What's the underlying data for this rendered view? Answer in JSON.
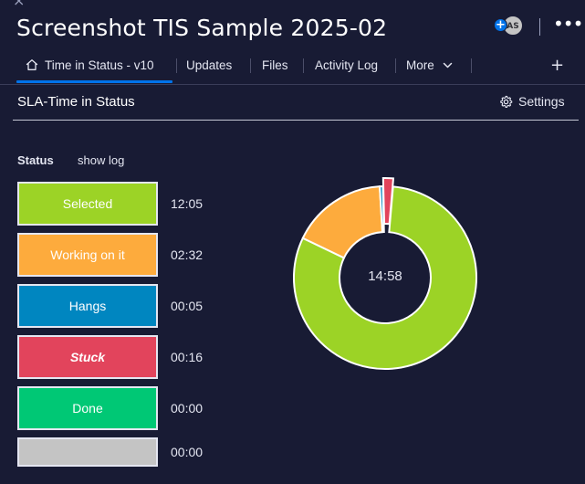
{
  "header": {
    "close_glyph": "×",
    "title": "Screenshot TIS Sample 2025-02",
    "avatar_initials": "AS",
    "avatar_plus": "+",
    "more_glyph": "•••"
  },
  "tabs": [
    {
      "label": "Time in Status - v10",
      "icon": "home-icon",
      "active": true
    },
    {
      "label": "Updates"
    },
    {
      "label": "Files"
    },
    {
      "label": "Activity Log"
    },
    {
      "label": "More",
      "icon": "chevron-down-icon"
    }
  ],
  "add_tab_glyph": "+",
  "widget": {
    "title": "SLA-Time in Status",
    "settings_label": "Settings",
    "status_header": "Status",
    "show_log_label": "show log"
  },
  "statuses": [
    {
      "label": "Selected",
      "time": "12:05",
      "color": "#9cd326"
    },
    {
      "label": "Working on it",
      "time": "02:32",
      "color": "#fdab3d"
    },
    {
      "label": "Hangs",
      "time": "00:05",
      "color": "#0086c0"
    },
    {
      "label": "Stuck",
      "time": "00:16",
      "color": "#e2445c"
    },
    {
      "label": "Done",
      "time": "00:00",
      "color": "#00c875"
    },
    {
      "label": "",
      "time": "00:00",
      "color": "#c4c4c4"
    }
  ],
  "chart_data": {
    "type": "pie",
    "donut": true,
    "center_label": "14:58",
    "categories": [
      "Selected",
      "Working on it",
      "Hangs",
      "Stuck",
      "Done",
      ""
    ],
    "values": [
      725,
      152,
      5,
      16,
      0,
      0
    ],
    "colors": [
      "#9cd326",
      "#fdab3d",
      "#0086c0",
      "#e2445c",
      "#00c875",
      "#c4c4c4"
    ],
    "exploded": [
      "Stuck"
    ]
  }
}
